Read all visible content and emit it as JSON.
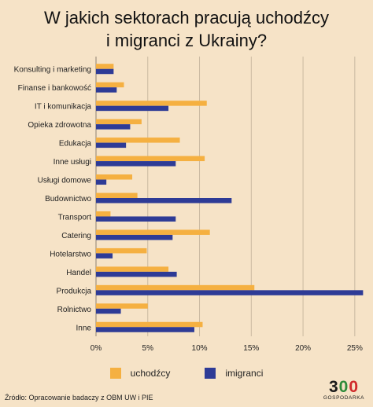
{
  "title_lines": [
    "W jakich sektorach pracują uchodźcy",
    "i migranci z Ukrainy?"
  ],
  "legend": [
    {
      "label": "uchodźcy",
      "color": "#f5b041"
    },
    {
      "label": "imigranci",
      "color": "#2e3b96"
    }
  ],
  "source": "Źródło: Opracowanie badaczy z OBM UW i PIE",
  "logo": {
    "number_1": "3",
    "number_2": "0",
    "number_3": "0",
    "text": "GOSPODARKA"
  },
  "chart_data": {
    "type": "bar",
    "orientation": "horizontal",
    "categories": [
      "Konsulting i marketing",
      "Finanse i bankowość",
      "IT i komunikacja",
      "Opieka zdrowotna",
      "Edukacja",
      "Inne usługi",
      "Usługi domowe",
      "Budownictwo",
      "Transport",
      "Catering",
      "Hotelarstwo",
      "Handel",
      "Produkcja",
      "Rolnictwo",
      "Inne"
    ],
    "series": [
      {
        "name": "uchodźcy",
        "color": "#f5b041",
        "values": [
          1.7,
          2.7,
          10.7,
          4.4,
          8.1,
          10.5,
          3.5,
          4.0,
          1.4,
          11.0,
          4.9,
          7.0,
          15.3,
          5.0,
          10.3
        ]
      },
      {
        "name": "imigranci",
        "color": "#2e3b96",
        "values": [
          1.7,
          2.0,
          7.0,
          3.3,
          2.9,
          7.7,
          1.0,
          13.1,
          7.7,
          7.4,
          1.6,
          7.8,
          25.8,
          2.4,
          9.5
        ]
      }
    ],
    "xlim": [
      0,
      26
    ],
    "xticks": [
      0,
      5,
      10,
      15,
      20,
      25
    ],
    "tick_labels": [
      "0%",
      "5%",
      "10%",
      "15%",
      "20%",
      "25%"
    ],
    "grid": true,
    "legend_position": "bottom"
  }
}
